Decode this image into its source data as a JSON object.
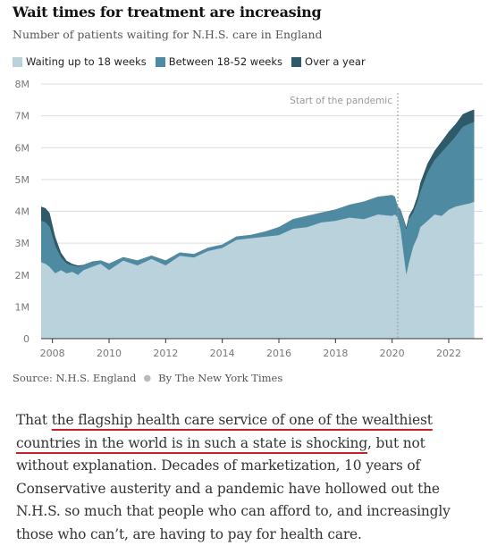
{
  "chart_data": {
    "type": "area",
    "stacked": true,
    "title": "Wait times for treatment are increasing",
    "subtitle": "Number of patients waiting for N.H.S. care in England",
    "ylim": [
      0,
      8000000
    ],
    "xlim": [
      2007.6,
      2023.2
    ],
    "y_ticks": [
      0,
      1000000,
      2000000,
      3000000,
      4000000,
      5000000,
      6000000,
      7000000,
      8000000
    ],
    "y_tick_labels": [
      "0",
      "1M",
      "2M",
      "3M",
      "4M",
      "5M",
      "6M",
      "7M",
      "8M"
    ],
    "x_ticks": [
      2008,
      2010,
      2012,
      2014,
      2016,
      2018,
      2020,
      2022
    ],
    "x_tick_labels": [
      "2008",
      "2010",
      "2012",
      "2014",
      "2016",
      "2018",
      "2020",
      "2022"
    ],
    "grid": true,
    "legend_position": "top-left",
    "x": [
      2007.6,
      2007.75,
      2007.9,
      2008.1,
      2008.3,
      2008.5,
      2008.7,
      2008.9,
      2009.1,
      2009.4,
      2009.7,
      2010,
      2010.5,
      2011,
      2011.5,
      2012,
      2012.5,
      2013,
      2013.5,
      2014,
      2014.5,
      2015,
      2015.5,
      2016,
      2016.5,
      2017,
      2017.5,
      2018,
      2018.5,
      2019,
      2019.5,
      2020,
      2020.1,
      2020.2,
      2020.3,
      2020.4,
      2020.5,
      2020.6,
      2020.75,
      2020.9,
      2021,
      2021.25,
      2021.5,
      2021.75,
      2022,
      2022.25,
      2022.5,
      2022.75,
      2022.9
    ],
    "series": [
      {
        "name": "Waiting up to 18 weeks",
        "color": "#b9d2dc",
        "values": [
          2400000,
          2350000,
          2250000,
          2050000,
          2150000,
          2050000,
          2100000,
          2000000,
          2150000,
          2250000,
          2350000,
          2150000,
          2450000,
          2300000,
          2500000,
          2300000,
          2600000,
          2550000,
          2750000,
          2850000,
          3100000,
          3150000,
          3200000,
          3250000,
          3450000,
          3500000,
          3650000,
          3700000,
          3800000,
          3750000,
          3900000,
          3850000,
          3900000,
          3800000,
          3400000,
          2700000,
          2000000,
          2400000,
          2900000,
          3200000,
          3500000,
          3700000,
          3900000,
          3850000,
          4050000,
          4150000,
          4200000,
          4250000,
          4300000
        ]
      },
      {
        "name": "Between 18-52 weeks",
        "color": "#4e8aa2",
        "values": [
          1300000,
          1300000,
          1250000,
          850000,
          400000,
          300000,
          200000,
          250000,
          150000,
          150000,
          100000,
          200000,
          100000,
          150000,
          100000,
          150000,
          100000,
          100000,
          100000,
          100000,
          100000,
          100000,
          150000,
          250000,
          300000,
          350000,
          300000,
          350000,
          400000,
          550000,
          550000,
          650000,
          550000,
          350000,
          650000,
          1050000,
          1400000,
          1350000,
          1050000,
          1100000,
          1100000,
          1500000,
          1700000,
          2000000,
          2050000,
          2200000,
          2450000,
          2500000,
          2500000
        ]
      },
      {
        "name": "Over a year",
        "color": "#2e5a6a",
        "values": [
          450000,
          450000,
          450000,
          300000,
          150000,
          100000,
          50000,
          50000,
          20000,
          20000,
          10000,
          10000,
          10000,
          10000,
          10000,
          10000,
          10000,
          10000,
          10000,
          10000,
          10000,
          10000,
          10000,
          10000,
          10000,
          10000,
          10000,
          10000,
          10000,
          10000,
          10000,
          10000,
          10000,
          10000,
          10000,
          50000,
          100000,
          120000,
          150000,
          200000,
          300000,
          300000,
          300000,
          350000,
          400000,
          400000,
          400000,
          400000,
          400000
        ]
      }
    ],
    "annotations": [
      {
        "label": "Start of the pandemic",
        "x": 2020.2
      }
    ]
  },
  "source": {
    "text": "Source: N.H.S. England",
    "byline": "By The New York Times"
  },
  "article": {
    "pre": "That ",
    "highlight": "the flagship health care service of one of the wealthiest countries in the world is in such a state is shocking",
    "post": ", but not without explanation. Decades of marketization, 10 years of Conservative austerity and a pandemic have hollowed out the N.H.S. so much that people who can afford to, and increasingly those who can’t, are having to pay for health care."
  },
  "colors": {
    "grid": "#dcdcdc",
    "axis": "#333333",
    "annotation_line": "#999999",
    "underline": "#c8202a"
  }
}
